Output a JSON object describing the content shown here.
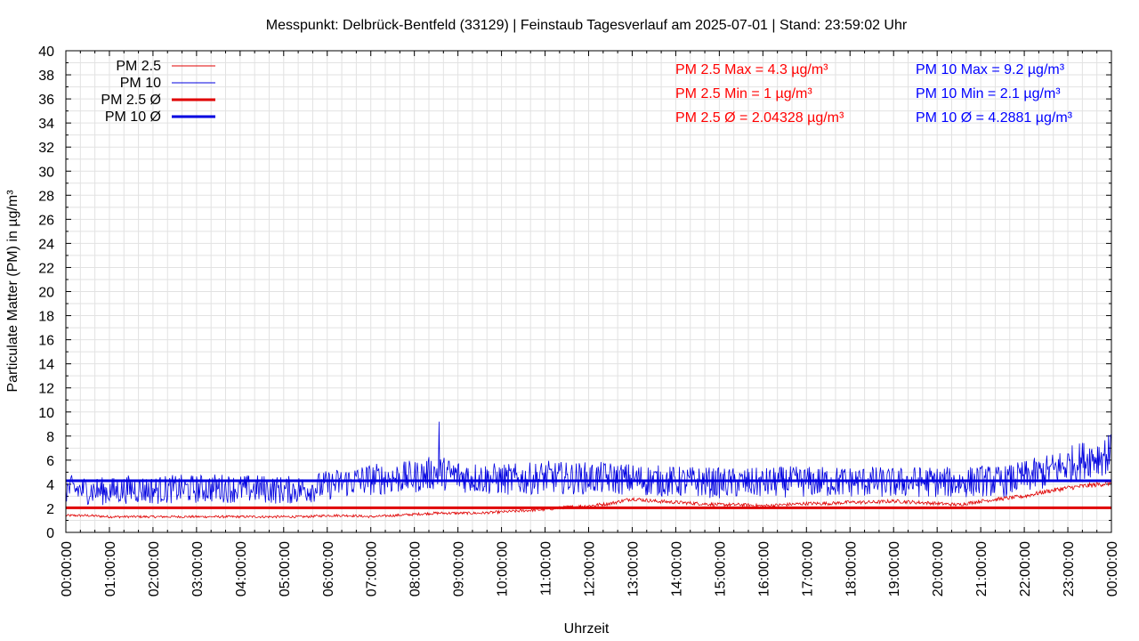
{
  "chart_data": {
    "type": "line",
    "title": "Messpunkt: Delbrück-Bentfeld (33129) | Feinstaub Tagesverlauf am 2025-07-01 | Stand: 23:59:02 Uhr",
    "xlabel": "Uhrzeit",
    "ylabel": "Particulate Matter (PM) in µg/m³",
    "ylim": [
      0,
      40
    ],
    "yticks": [
      0,
      2,
      4,
      6,
      8,
      10,
      12,
      14,
      16,
      18,
      20,
      22,
      24,
      26,
      28,
      30,
      32,
      34,
      36,
      38,
      40
    ],
    "xlim": [
      "00:00:00",
      "24:00:00"
    ],
    "xticks": [
      "00:00:00",
      "01:00:00",
      "02:00:00",
      "03:00:00",
      "04:00:00",
      "05:00:00",
      "06:00:00",
      "07:00:00",
      "08:00:00",
      "09:00:00",
      "10:00:00",
      "11:00:00",
      "12:00:00",
      "13:00:00",
      "14:00:00",
      "15:00:00",
      "16:00:00",
      "17:00:00",
      "18:00:00",
      "19:00:00",
      "20:00:00",
      "21:00:00",
      "22:00:00",
      "23:00:00",
      "00:00:00"
    ],
    "grid": true,
    "legend_position": "top-left",
    "series": [
      {
        "name": "PM 2.5",
        "color": "#e00000",
        "style": "thin",
        "x": [
          "00:00",
          "00:30",
          "01:00",
          "01:30",
          "02:00",
          "02:30",
          "03:00",
          "03:30",
          "04:00",
          "04:30",
          "05:00",
          "05:30",
          "06:00",
          "06:30",
          "07:00",
          "07:30",
          "08:00",
          "08:30",
          "09:00",
          "09:30",
          "10:00",
          "10:30",
          "11:00",
          "11:30",
          "12:00",
          "12:30",
          "13:00",
          "13:30",
          "14:00",
          "14:30",
          "15:00",
          "15:30",
          "16:00",
          "16:30",
          "17:00",
          "17:30",
          "18:00",
          "18:30",
          "19:00",
          "19:30",
          "20:00",
          "20:30",
          "21:00",
          "21:30",
          "22:00",
          "22:30",
          "23:00",
          "23:30",
          "23:59"
        ],
        "values": [
          1.4,
          1.4,
          1.3,
          1.3,
          1.3,
          1.3,
          1.3,
          1.3,
          1.3,
          1.3,
          1.3,
          1.3,
          1.4,
          1.4,
          1.3,
          1.4,
          1.5,
          1.6,
          1.6,
          1.6,
          1.7,
          1.8,
          1.9,
          2.1,
          2.2,
          2.4,
          2.8,
          2.6,
          2.5,
          2.4,
          2.3,
          2.3,
          2.2,
          2.3,
          2.4,
          2.4,
          2.5,
          2.5,
          2.6,
          2.5,
          2.4,
          2.3,
          2.6,
          2.8,
          3.0,
          3.4,
          3.7,
          3.9,
          4.1
        ]
      },
      {
        "name": "PM 10",
        "color": "#0000e0",
        "style": "thin",
        "x": [
          "00:00",
          "00:30",
          "01:00",
          "01:30",
          "02:00",
          "02:30",
          "03:00",
          "03:30",
          "04:00",
          "04:30",
          "05:00",
          "05:30",
          "06:00",
          "06:30",
          "07:00",
          "07:30",
          "08:00",
          "08:30",
          "09:00",
          "09:30",
          "10:00",
          "10:30",
          "11:00",
          "11:30",
          "12:00",
          "12:30",
          "13:00",
          "13:30",
          "14:00",
          "14:30",
          "15:00",
          "15:30",
          "16:00",
          "16:30",
          "17:00",
          "17:30",
          "18:00",
          "18:30",
          "19:00",
          "19:30",
          "20:00",
          "20:30",
          "21:00",
          "21:30",
          "22:00",
          "22:30",
          "23:00",
          "23:30",
          "23:59"
        ],
        "values": [
          3.6,
          3.5,
          3.4,
          3.6,
          3.5,
          3.6,
          3.6,
          3.7,
          3.6,
          3.6,
          3.5,
          3.6,
          3.9,
          4.2,
          4.4,
          4.5,
          4.6,
          5.0,
          4.7,
          4.5,
          4.4,
          4.4,
          4.6,
          4.5,
          4.5,
          4.5,
          4.4,
          4.3,
          4.2,
          4.2,
          4.1,
          4.1,
          4.1,
          4.2,
          4.2,
          4.2,
          4.2,
          4.2,
          4.1,
          4.2,
          4.2,
          4.1,
          4.3,
          4.2,
          4.6,
          5.0,
          5.6,
          6.2,
          6.5
        ]
      },
      {
        "name": "PM 2.5 Ø",
        "color": "#e00000",
        "style": "thick",
        "constant": 2.04328
      },
      {
        "name": "PM 10 Ø",
        "color": "#0000e0",
        "style": "thick",
        "constant": 4.2881
      }
    ],
    "spikes": [
      {
        "series": "PM 10",
        "x": "08:34",
        "value": 9.2
      }
    ],
    "annotations": [
      {
        "text": "PM 2.5 Max = 4.3 µg/m³",
        "color": "#ff0000"
      },
      {
        "text": "PM 2.5 Min = 1 µg/m³",
        "color": "#ff0000"
      },
      {
        "text": "PM 2.5 Ø = 2.04328 µg/m³",
        "color": "#ff0000"
      },
      {
        "text": "PM 10 Max = 9.2 µg/m³",
        "color": "#0000ff"
      },
      {
        "text": "PM 10 Min = 2.1 µg/m³",
        "color": "#0000ff"
      },
      {
        "text": "PM 10 Ø = 4.2881 µg/m³",
        "color": "#0000ff"
      }
    ]
  }
}
